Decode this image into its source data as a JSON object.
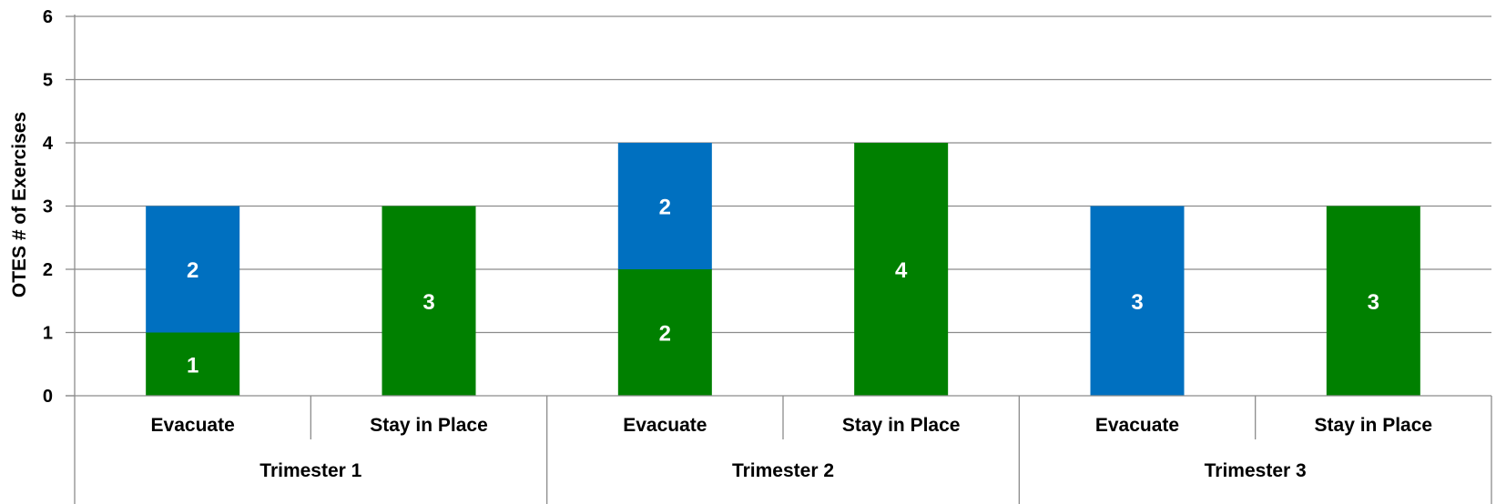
{
  "chart_data": {
    "type": "bar",
    "stacked": true,
    "ylabel": "OTES # of Exercises",
    "ylim": [
      0,
      6
    ],
    "yticks": [
      "0",
      "1",
      "2",
      "3",
      "4",
      "5",
      "6"
    ],
    "grid": true,
    "groups": [
      {
        "label": "Trimester 1",
        "categories": [
          "Evacuate",
          "Stay in Place"
        ]
      },
      {
        "label": "Trimester 2",
        "categories": [
          "Evacuate",
          "Stay in Place"
        ]
      },
      {
        "label": "Trimester 3",
        "categories": [
          "Evacuate",
          "Stay in Place"
        ]
      }
    ],
    "categories": [
      "Evacuate",
      "Stay in Place",
      "Evacuate",
      "Stay in Place",
      "Evacuate",
      "Stay in Place"
    ],
    "series": [
      {
        "color": "#008000",
        "values": [
          1,
          3,
          2,
          4,
          0,
          3
        ]
      },
      {
        "color": "#0070C0",
        "values": [
          2,
          0,
          2,
          0,
          3,
          0
        ]
      }
    ]
  }
}
